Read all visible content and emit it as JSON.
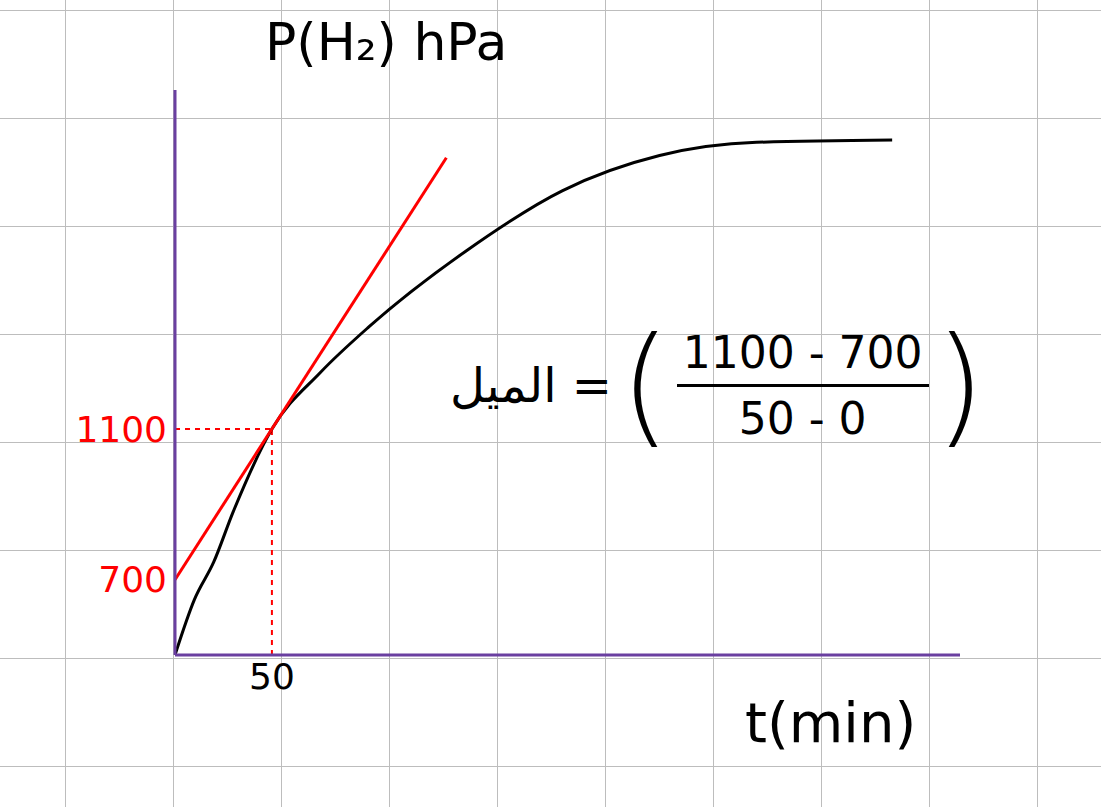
{
  "chart_data": {
    "type": "line",
    "y_label": "P(H₂) hPa",
    "x_label": "t(min)",
    "xlim": [
      0,
      405
    ],
    "ylim": [
      500,
      2000
    ],
    "xticks": [
      50
    ],
    "yticks": [
      700,
      1100
    ],
    "grid": true,
    "series": [
      {
        "color": "#000000",
        "x": [
          0,
          10,
          20,
          30,
          50,
          75,
          100,
          150,
          200,
          250,
          300,
          370
        ],
        "values": [
          500,
          647,
          747,
          880,
          1100,
          1250,
          1371,
          1572,
          1733,
          1826,
          1861,
          1867
        ]
      },
      {
        "color": "#ff0000",
        "x": [
          0,
          140
        ],
        "values": [
          700,
          1820
        ]
      }
    ],
    "tangent_point": {
      "x": 50,
      "y": 1100
    },
    "annotation": {
      "text": "الميل =",
      "numerator": "1100 - 700",
      "denominator": "50 - 0"
    }
  }
}
